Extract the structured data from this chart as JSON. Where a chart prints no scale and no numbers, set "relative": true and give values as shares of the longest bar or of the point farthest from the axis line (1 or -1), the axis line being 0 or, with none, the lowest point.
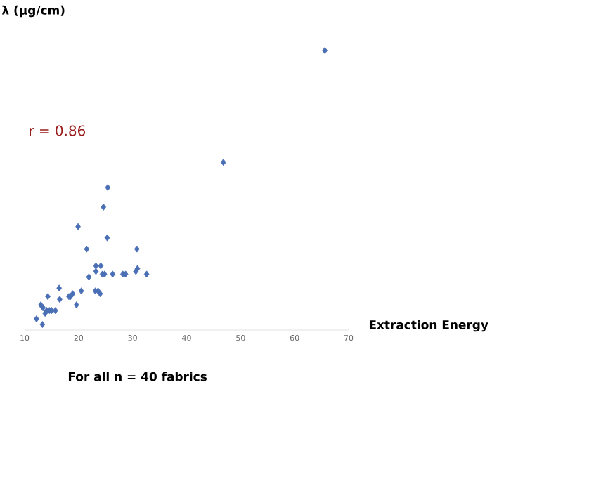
{
  "chart_data": {
    "type": "scatter",
    "ylabel": "λ (μg/cm)",
    "xlabel": "Extraction Energy",
    "annotations": [
      "r = 0.86",
      "For all n = 40 fabrics"
    ],
    "xlim": [
      10,
      70
    ],
    "xticks": [
      10,
      20,
      30,
      40,
      50,
      60,
      70
    ],
    "relative": true,
    "tick_labels": "x",
    "marker": "diamond",
    "series": [
      {
        "color": "#4a6fb5",
        "x": [
          25.4,
          24.6,
          19.9,
          25.3,
          21.5,
          30.8,
          23.2,
          24.1,
          23.2,
          24.4,
          24.8,
          26.3,
          28.2,
          28.7,
          30.9,
          30.6,
          32.6,
          21.9,
          23.1,
          23.6,
          24.0,
          20.5,
          16.4,
          18.9,
          18.5,
          18.2,
          16.5,
          19.6,
          14.3,
          13.0,
          13.4,
          13.8,
          14.1,
          15.0,
          15.7,
          14.6,
          12.2,
          13.3,
          65.6,
          46.8
        ],
        "values": [
          0.51,
          0.44,
          0.37,
          0.33,
          0.29,
          0.29,
          0.23,
          0.23,
          0.21,
          0.2,
          0.2,
          0.2,
          0.2,
          0.2,
          0.22,
          0.21,
          0.2,
          0.19,
          0.14,
          0.14,
          0.13,
          0.14,
          0.15,
          0.13,
          0.12,
          0.12,
          0.11,
          0.09,
          0.12,
          0.09,
          0.08,
          0.06,
          0.07,
          0.07,
          0.07,
          0.07,
          0.04,
          0.02,
          1.0,
          0.6
        ]
      }
    ]
  }
}
